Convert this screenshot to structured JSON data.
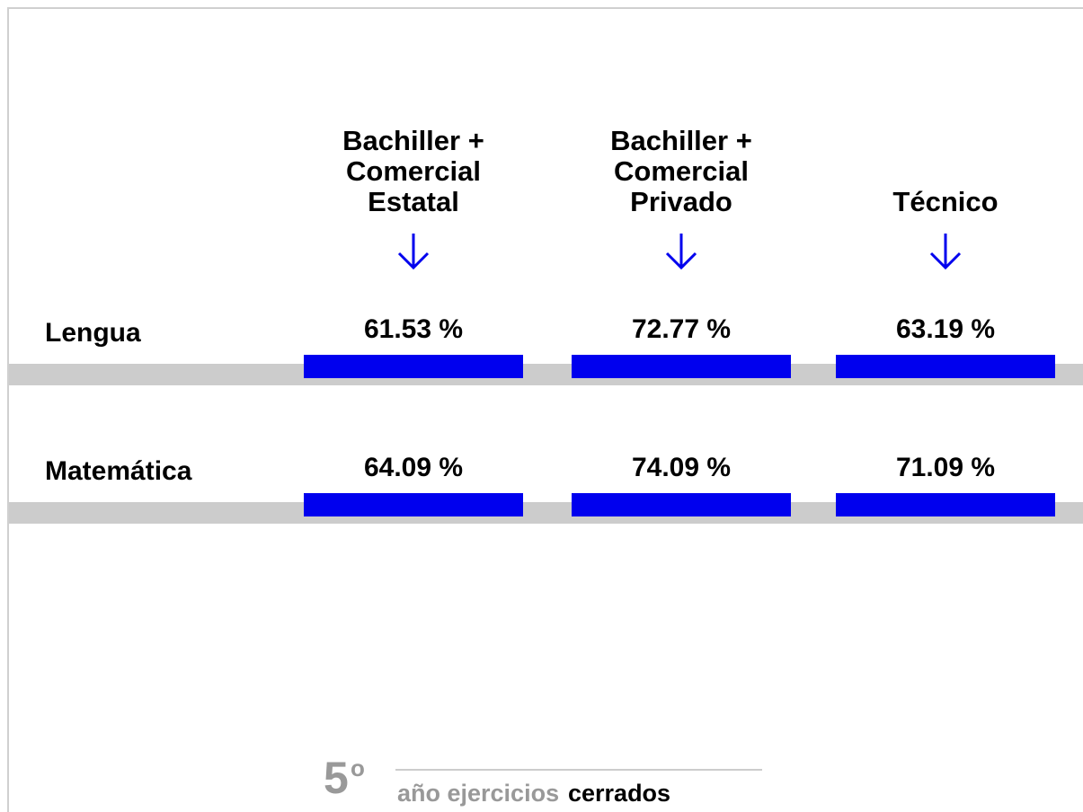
{
  "table": {
    "columns": [
      "Bachiller + Comercial Estatal",
      "Bachiller + Comercial Privado",
      "Técnico"
    ],
    "rows": [
      {
        "label": "Lengua",
        "cells": [
          "61.53 %",
          "72.77 %",
          "63.19 %"
        ]
      },
      {
        "label": "Matemática",
        "cells": [
          "64.09 %",
          "74.09 %",
          "71.09 %"
        ]
      }
    ]
  },
  "footer": {
    "number": "5",
    "ordinal": "o",
    "text": "año ejercicios",
    "emphasis": "cerrados"
  }
}
